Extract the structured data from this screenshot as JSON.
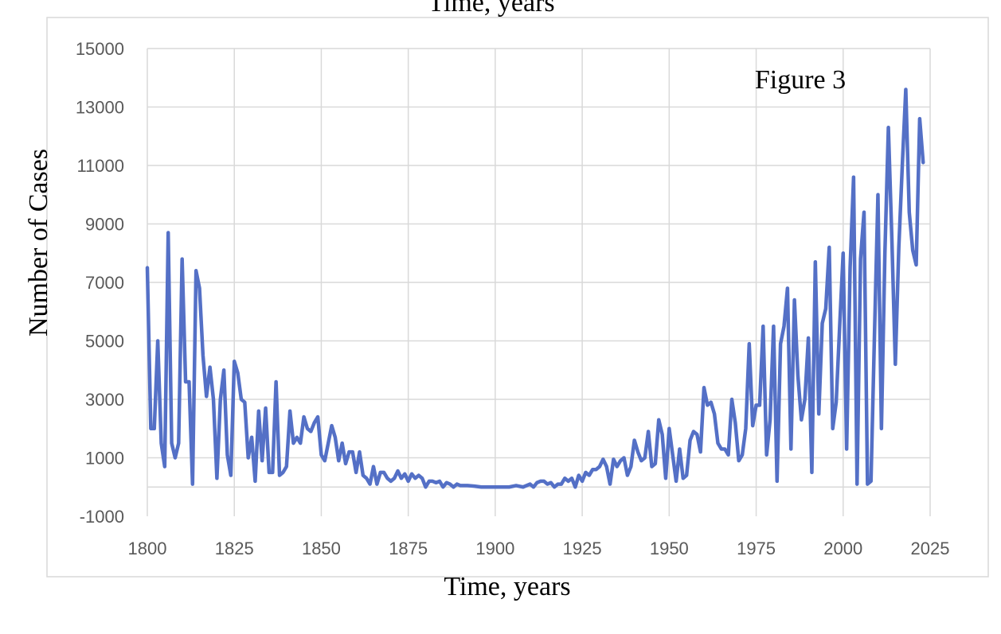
{
  "chart_data": {
    "type": "line",
    "title": "Time, years",
    "xlabel": "Time, years",
    "ylabel": "Number of Cases",
    "annotation": "Figure 3",
    "xlim": [
      1800,
      2025
    ],
    "ylim": [
      -1000,
      15000
    ],
    "x_ticks": [
      1800,
      1825,
      1850,
      1875,
      1900,
      1925,
      1950,
      1975,
      2000,
      2025
    ],
    "y_ticks": [
      -1000,
      1000,
      3000,
      5000,
      7000,
      9000,
      11000,
      13000,
      15000
    ],
    "x_tick_labels": [
      "1800",
      "1825",
      "1850",
      "1875",
      "1900",
      "1925",
      "1950",
      "1975",
      "2000",
      "2025"
    ],
    "y_tick_labels": [
      "-1000",
      "1000",
      "3000",
      "5000",
      "7000",
      "9000",
      "11000",
      "13000",
      "15000"
    ],
    "grid": true,
    "series": [
      {
        "color": "#5470c6",
        "x": [
          1800,
          1801,
          1802,
          1803,
          1804,
          1805,
          1806,
          1807,
          1808,
          1809,
          1810,
          1811,
          1812,
          1813,
          1814,
          1815,
          1816,
          1817,
          1818,
          1819,
          1820,
          1821,
          1822,
          1823,
          1824,
          1825,
          1826,
          1827,
          1828,
          1829,
          1830,
          1831,
          1832,
          1833,
          1834,
          1835,
          1836,
          1837,
          1838,
          1839,
          1840,
          1841,
          1842,
          1843,
          1844,
          1845,
          1846,
          1847,
          1848,
          1849,
          1850,
          1851,
          1852,
          1853,
          1854,
          1855,
          1856,
          1857,
          1858,
          1859,
          1860,
          1861,
          1862,
          1863,
          1864,
          1865,
          1866,
          1867,
          1868,
          1869,
          1870,
          1871,
          1872,
          1873,
          1874,
          1875,
          1876,
          1877,
          1878,
          1879,
          1880,
          1881,
          1882,
          1883,
          1884,
          1885,
          1886,
          1887,
          1888,
          1889,
          1890,
          1892,
          1894,
          1896,
          1898,
          1900,
          1902,
          1904,
          1906,
          1908,
          1910,
          1911,
          1912,
          1913,
          1914,
          1915,
          1916,
          1917,
          1918,
          1919,
          1920,
          1921,
          1922,
          1923,
          1924,
          1925,
          1926,
          1927,
          1928,
          1929,
          1930,
          1931,
          1932,
          1933,
          1934,
          1935,
          1936,
          1937,
          1938,
          1939,
          1940,
          1941,
          1942,
          1943,
          1944,
          1945,
          1946,
          1947,
          1948,
          1949,
          1950,
          1951,
          1952,
          1953,
          1954,
          1955,
          1956,
          1957,
          1958,
          1959,
          1960,
          1961,
          1962,
          1963,
          1964,
          1965,
          1966,
          1967,
          1968,
          1969,
          1970,
          1971,
          1972,
          1973,
          1974,
          1975,
          1976,
          1977,
          1978,
          1979,
          1980,
          1981,
          1982,
          1983,
          1984,
          1985,
          1986,
          1987,
          1988,
          1989,
          1990,
          1991,
          1992,
          1993,
          1994,
          1995,
          1996,
          1997,
          1998,
          1999,
          2000,
          2001,
          2002,
          2003,
          2004,
          2005,
          2006,
          2007,
          2008,
          2009,
          2010,
          2011,
          2012,
          2013,
          2014,
          2015,
          2016,
          2017,
          2018,
          2019,
          2020,
          2021,
          2022,
          2023
        ],
        "y": [
          7500,
          2000,
          2000,
          5000,
          1500,
          700,
          8700,
          1500,
          1000,
          1500,
          7800,
          3600,
          3600,
          100,
          7400,
          6800,
          4500,
          3100,
          4100,
          3000,
          300,
          3000,
          4000,
          1100,
          400,
          4300,
          3900,
          3000,
          2900,
          1000,
          1700,
          200,
          2600,
          900,
          2700,
          500,
          500,
          3600,
          400,
          500,
          700,
          2600,
          1500,
          1700,
          1500,
          2400,
          2000,
          1900,
          2200,
          2400,
          1100,
          900,
          1500,
          2100,
          1700,
          900,
          1500,
          800,
          1200,
          1200,
          500,
          1200,
          400,
          300,
          100,
          700,
          100,
          500,
          500,
          300,
          200,
          300,
          550,
          300,
          450,
          200,
          450,
          300,
          400,
          300,
          0,
          200,
          200,
          150,
          200,
          0,
          150,
          100,
          0,
          100,
          50,
          50,
          30,
          0,
          0,
          0,
          0,
          0,
          50,
          0,
          100,
          0,
          150,
          200,
          200,
          100,
          150,
          0,
          100,
          100,
          300,
          200,
          300,
          0,
          400,
          200,
          500,
          400,
          600,
          600,
          700,
          950,
          700,
          100,
          950,
          700,
          900,
          1000,
          400,
          700,
          1600,
          1200,
          900,
          1000,
          1900,
          700,
          800,
          2300,
          1800,
          300,
          2000,
          1100,
          200,
          1300,
          300,
          400,
          1600,
          1900,
          1800,
          1200,
          3400,
          2800,
          2900,
          2500,
          1500,
          1300,
          1300,
          1100,
          3000,
          2200,
          900,
          1100,
          2000,
          4900,
          2100,
          2800,
          2800,
          5500,
          1100,
          2300,
          5500,
          200,
          4900,
          5500,
          6800,
          1300,
          6400,
          3800,
          2300,
          3000,
          5100,
          500,
          7700,
          2500,
          5600,
          6100,
          8200,
          2000,
          2900,
          5500,
          8000,
          1300,
          7500,
          10600,
          100,
          7800,
          9400,
          100,
          200,
          5200,
          10000,
          2000,
          8000,
          12300,
          8500,
          4200,
          8200,
          11000,
          13600,
          9400,
          8100,
          7600,
          12600,
          11100
        ]
      }
    ]
  }
}
